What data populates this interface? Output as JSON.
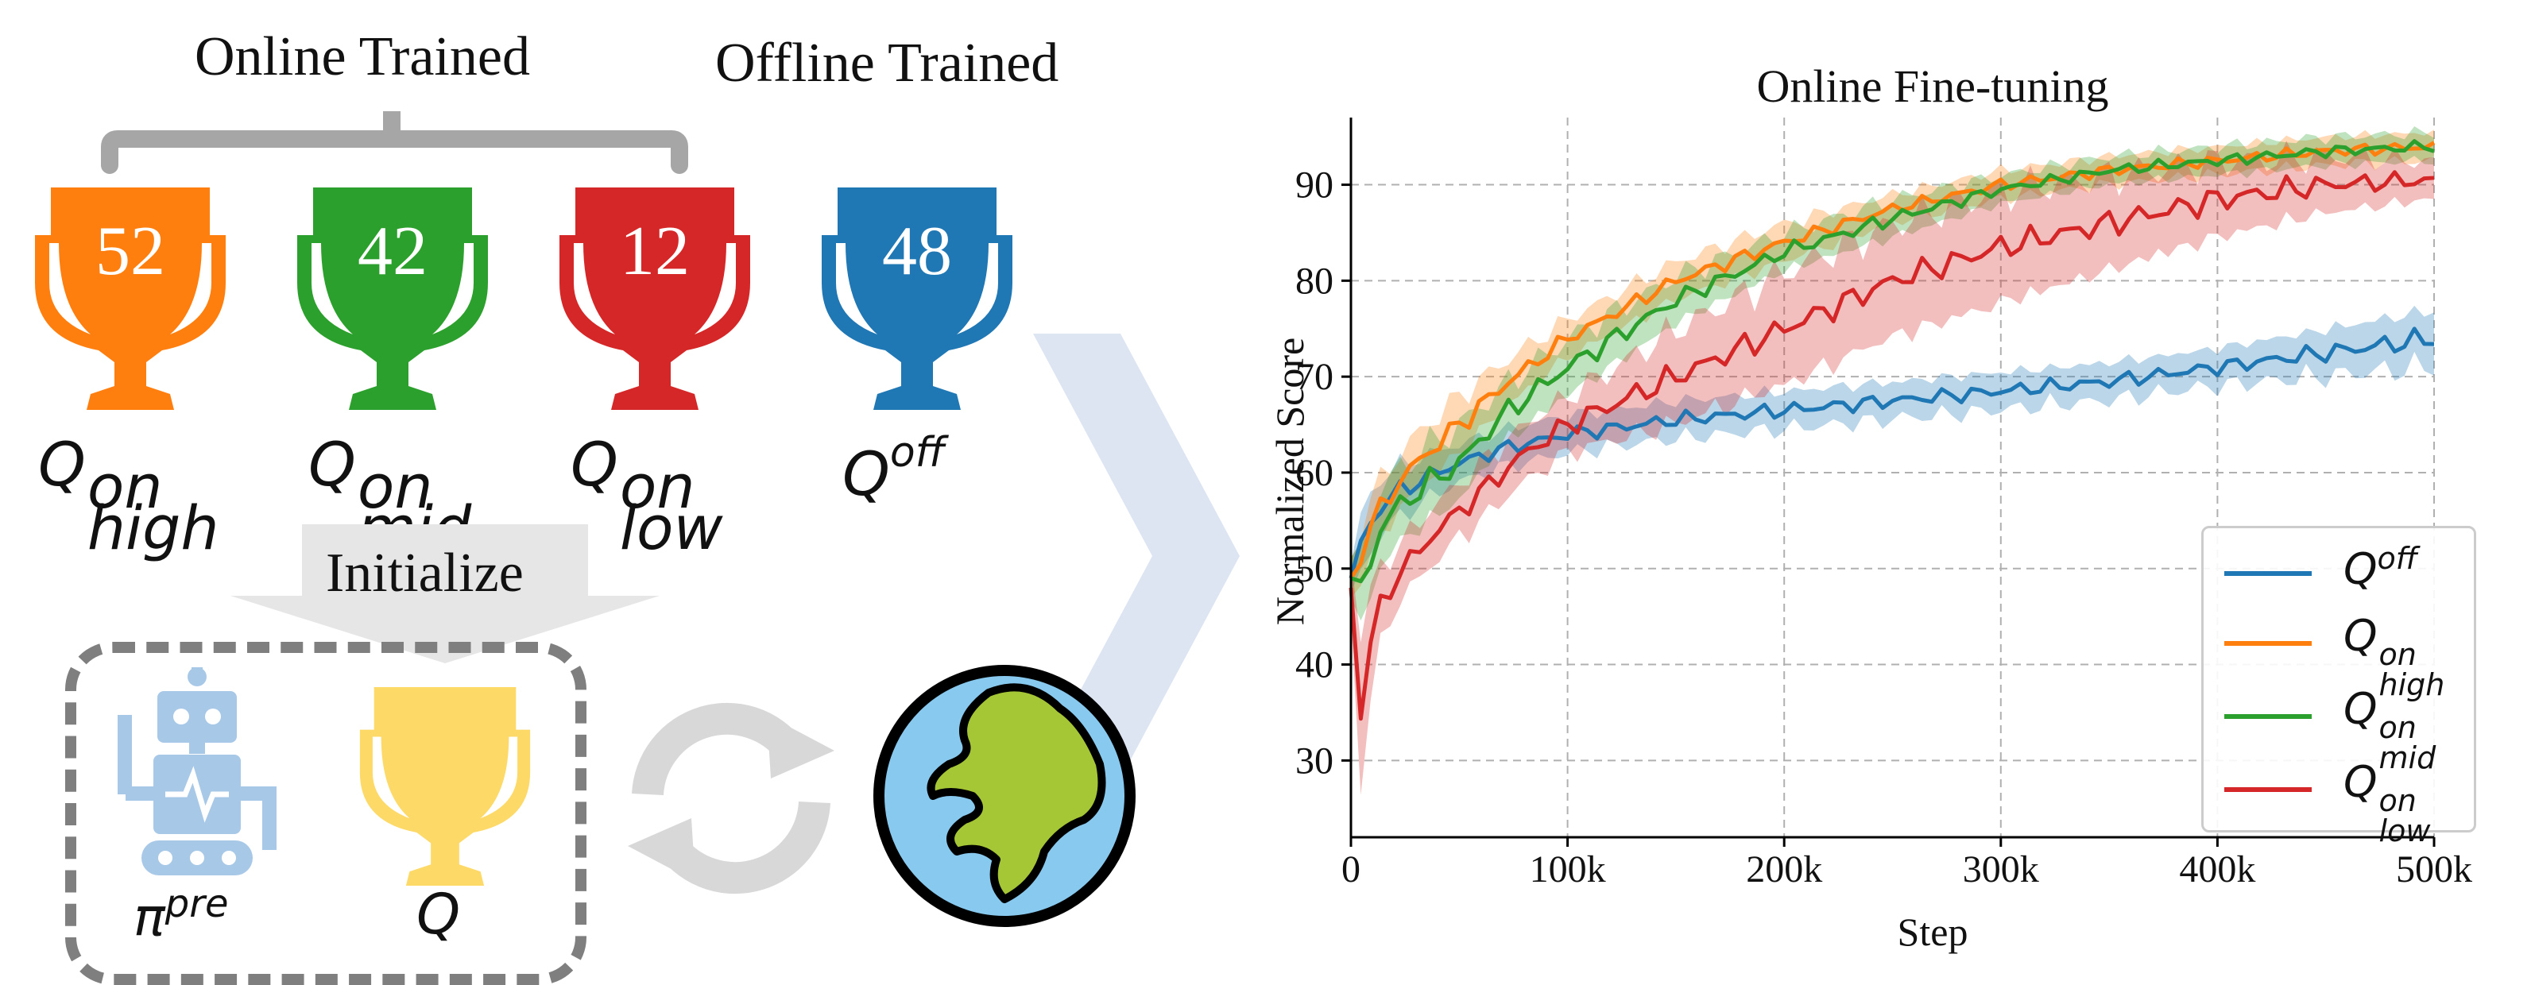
{
  "left_panel": {
    "online_label": "Online Trained",
    "offline_label": "Offline Trained",
    "initialize_label": "Initialize",
    "cups": [
      {
        "value": "52",
        "color": "#ff7f0e",
        "label_base": "Q",
        "label_sup": "on",
        "label_sub": "high"
      },
      {
        "value": "42",
        "color": "#2ca02c",
        "label_base": "Q",
        "label_sup": "on",
        "label_sub": "mid"
      },
      {
        "value": "12",
        "color": "#d62728",
        "label_base": "Q",
        "label_sup": "on",
        "label_sub": "low"
      },
      {
        "value": "48",
        "color": "#1f77b4",
        "label_base": "Q",
        "label_sup": "off",
        "label_sub": ""
      }
    ],
    "policy_label_base": "π",
    "policy_label_sup": "pre",
    "q_label": "Q",
    "init_cup_color": "#fdd967",
    "robot_color": "#a8c8e8",
    "globe_ocean_color": "#87c9ef",
    "globe_land_color": "#a6c735",
    "arrow_color": "#dde5f3",
    "cycle_color": "#d8d8d8"
  },
  "chart_data": {
    "type": "line",
    "title": "Online Fine-tuning",
    "xlabel": "Step",
    "ylabel": "Normalized Score",
    "xlim": [
      0,
      500000
    ],
    "ylim": [
      22,
      97
    ],
    "xticks": [
      0,
      100000,
      200000,
      300000,
      400000,
      500000
    ],
    "xtick_labels": [
      "0",
      "100k",
      "200k",
      "300k",
      "400k",
      "500k"
    ],
    "yticks": [
      30,
      40,
      50,
      60,
      70,
      80,
      90
    ],
    "ytick_labels": [
      "30",
      "40",
      "50",
      "60",
      "70",
      "80",
      "90"
    ],
    "grid": true,
    "legend_placement": "lower-right",
    "series": [
      {
        "name": "Q^{off}",
        "legend_base": "Q",
        "legend_sup": "off",
        "legend_sub": "",
        "color": "#1f77b4",
        "x": [
          0,
          5000,
          15000,
          30000,
          50000,
          70000,
          100000,
          150000,
          200000,
          250000,
          300000,
          350000,
          400000,
          450000,
          500000
        ],
        "y": [
          49,
          53,
          57,
          59,
          61,
          62.5,
          64,
          65.5,
          66.5,
          67.5,
          68.5,
          69.5,
          71,
          72.5,
          74
        ],
        "band": [
          2,
          3,
          3,
          2.5,
          2,
          2,
          2,
          2,
          2,
          2,
          2,
          2,
          2,
          2.5,
          3
        ]
      },
      {
        "name": "Q^{on}_{high}",
        "legend_base": "Q",
        "legend_sup": "on",
        "legend_sub": "high",
        "color": "#ff7f0e",
        "x": [
          0,
          5000,
          15000,
          30000,
          50000,
          70000,
          100000,
          150000,
          200000,
          250000,
          300000,
          350000,
          400000,
          450000,
          500000
        ],
        "y": [
          49,
          52,
          57,
          61,
          65,
          69,
          74,
          80,
          84,
          87.5,
          90,
          91.5,
          92.5,
          93.5,
          94
        ],
        "band": [
          2,
          3,
          3,
          3,
          3,
          2.5,
          2,
          2,
          2,
          1.5,
          1.5,
          1.5,
          1.5,
          1.5,
          1.5
        ]
      },
      {
        "name": "Q^{on}_{mid}",
        "legend_base": "Q",
        "legend_sup": "on",
        "legend_sub": "mid",
        "color": "#2ca02c",
        "x": [
          0,
          5000,
          15000,
          30000,
          50000,
          70000,
          100000,
          150000,
          200000,
          250000,
          300000,
          350000,
          400000,
          450000,
          500000
        ],
        "y": [
          49,
          48,
          55,
          58,
          61,
          66,
          71,
          78,
          83,
          86.5,
          89.5,
          91.5,
          92.5,
          93.5,
          94
        ],
        "band": [
          2,
          4,
          4,
          4,
          4,
          3,
          3,
          2.5,
          2,
          2,
          1.5,
          1.5,
          1.5,
          1.5,
          1.5
        ]
      },
      {
        "name": "Q^{on}_{low}",
        "legend_base": "Q",
        "legend_sup": "on",
        "legend_sub": "low",
        "color": "#d62728",
        "x": [
          0,
          5000,
          10000,
          20000,
          40000,
          60000,
          80000,
          100000,
          150000,
          200000,
          250000,
          300000,
          350000,
          400000,
          450000,
          500000
        ],
        "y": [
          48,
          34,
          44,
          49,
          54,
          58,
          62,
          65,
          70,
          75,
          80,
          83.5,
          86,
          88.5,
          90,
          90.5
        ],
        "band": [
          4,
          8,
          5,
          3,
          3,
          3,
          3,
          3,
          5,
          6,
          6,
          6,
          5,
          4,
          3,
          2
        ]
      }
    ]
  }
}
